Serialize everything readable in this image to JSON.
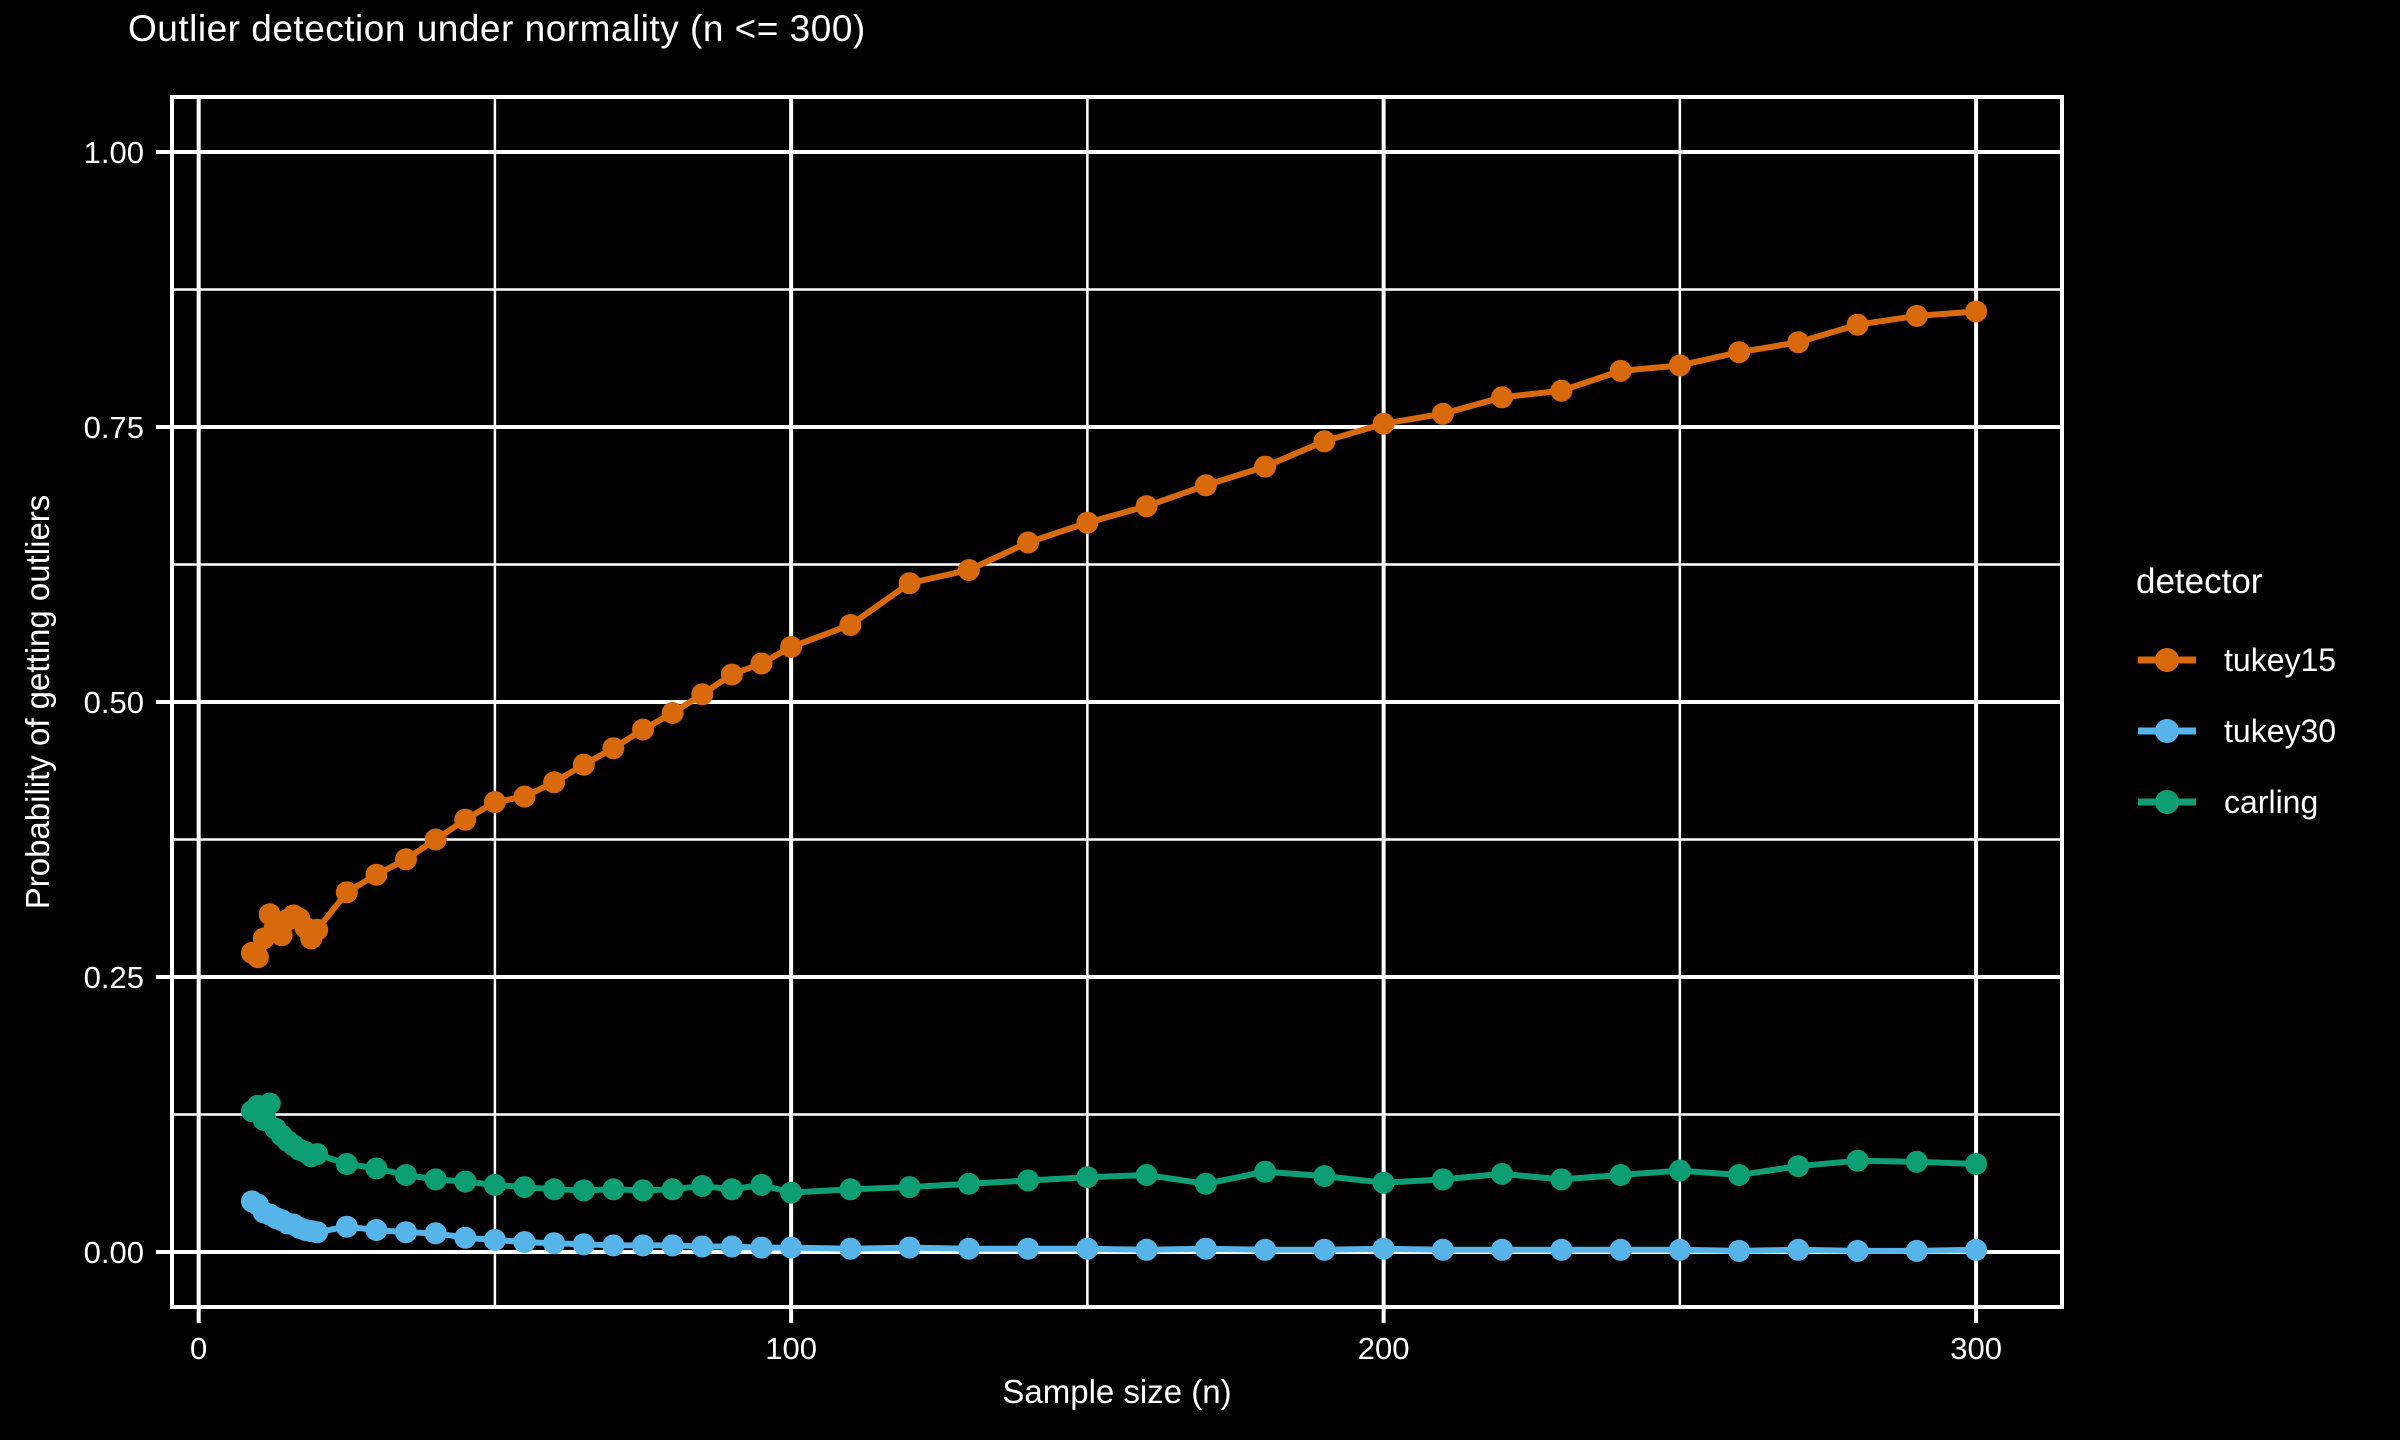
{
  "chart_data": {
    "type": "line",
    "title": "Outlier detection under normality (n <= 300)",
    "xlabel": "Sample size (n)",
    "ylabel": "Probability of getting outliers",
    "legend_title": "detector",
    "legend_position": "right",
    "background_color": "#000000",
    "foreground_color": "#ffffff",
    "grid": "white major and minor gridlines on black panel",
    "xlim": [
      -4.5,
      314.5
    ],
    "ylim": [
      -0.05,
      1.05
    ],
    "x_ticks": [
      0,
      100,
      200,
      300
    ],
    "x_minor_ticks": [
      50,
      150,
      250
    ],
    "y_ticks": [
      "0.00",
      "0.25",
      "0.50",
      "0.75",
      "1.00"
    ],
    "y_tick_values": [
      0,
      0.25,
      0.5,
      0.75,
      1.0
    ],
    "y_minor_ticks": [
      0.125,
      0.375,
      0.625,
      0.875
    ],
    "x": [
      9,
      10,
      11,
      12,
      13,
      14,
      15,
      16,
      17,
      18,
      19,
      20,
      25,
      30,
      35,
      40,
      45,
      50,
      55,
      60,
      65,
      70,
      75,
      80,
      85,
      90,
      95,
      100,
      110,
      120,
      130,
      140,
      150,
      160,
      170,
      180,
      190,
      200,
      210,
      220,
      230,
      240,
      250,
      260,
      270,
      280,
      290,
      300
    ],
    "series": [
      {
        "name": "tukey15",
        "color": "#D8690D",
        "values": [
          0.272,
          0.268,
          0.285,
          0.307,
          0.296,
          0.288,
          0.302,
          0.306,
          0.303,
          0.295,
          0.285,
          0.293,
          0.327,
          0.343,
          0.357,
          0.375,
          0.393,
          0.409,
          0.414,
          0.427,
          0.443,
          0.458,
          0.475,
          0.49,
          0.507,
          0.525,
          0.535,
          0.55,
          0.57,
          0.608,
          0.62,
          0.645,
          0.663,
          0.678,
          0.697,
          0.714,
          0.737,
          0.753,
          0.762,
          0.777,
          0.783,
          0.801,
          0.806,
          0.818,
          0.827,
          0.843,
          0.851,
          0.855
        ]
      },
      {
        "name": "tukey30",
        "color": "#56B4E9",
        "values": [
          0.046,
          0.043,
          0.036,
          0.034,
          0.031,
          0.029,
          0.026,
          0.025,
          0.022,
          0.02,
          0.019,
          0.018,
          0.023,
          0.02,
          0.018,
          0.017,
          0.013,
          0.011,
          0.009,
          0.008,
          0.007,
          0.006,
          0.006,
          0.006,
          0.005,
          0.005,
          0.004,
          0.004,
          0.003,
          0.004,
          0.003,
          0.003,
          0.003,
          0.002,
          0.003,
          0.002,
          0.002,
          0.003,
          0.002,
          0.002,
          0.002,
          0.002,
          0.002,
          0.001,
          0.002,
          0.001,
          0.001,
          0.002
        ]
      },
      {
        "name": "carling",
        "color": "#0D9E73",
        "values": [
          0.128,
          0.133,
          0.12,
          0.135,
          0.112,
          0.106,
          0.101,
          0.097,
          0.093,
          0.091,
          0.087,
          0.089,
          0.08,
          0.076,
          0.07,
          0.066,
          0.064,
          0.061,
          0.059,
          0.057,
          0.056,
          0.057,
          0.056,
          0.057,
          0.06,
          0.057,
          0.061,
          0.054,
          0.057,
          0.059,
          0.062,
          0.065,
          0.068,
          0.07,
          0.062,
          0.073,
          0.069,
          0.063,
          0.066,
          0.071,
          0.066,
          0.07,
          0.074,
          0.07,
          0.078,
          0.083,
          0.082,
          0.08
        ]
      }
    ]
  }
}
